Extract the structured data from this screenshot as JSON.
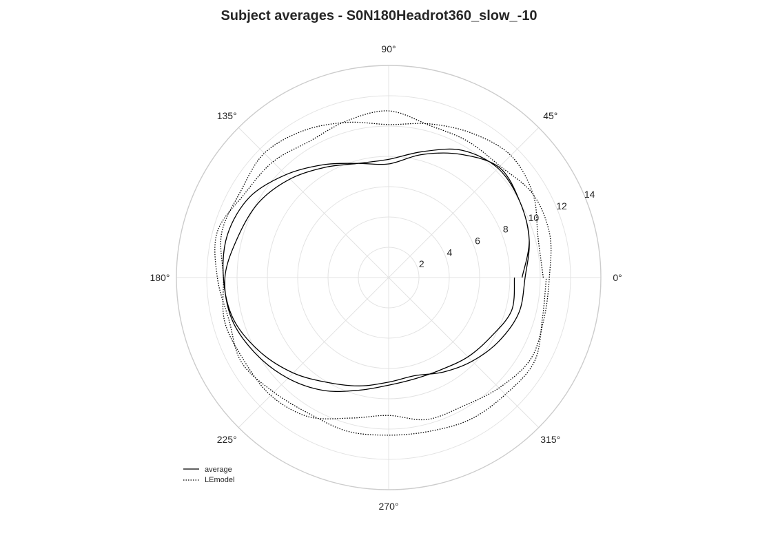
{
  "chart_data": {
    "type": "polar-line",
    "title": "Subject averages - S0N180Headrot360_slow_-10",
    "theta_tick_labels": [
      "0°",
      "45°",
      "90°",
      "135°",
      "180°",
      "225°",
      "270°",
      "315°"
    ],
    "r_tick_labels": [
      "2",
      "4",
      "6",
      "8",
      "10",
      "12",
      "14"
    ],
    "r_ticks": [
      2,
      4,
      6,
      8,
      10,
      12,
      14
    ],
    "rlim": [
      0,
      14
    ],
    "grid": true,
    "legend_position": "lower-left",
    "series": [
      {
        "name": "average",
        "line_style": "solid",
        "color": "#000000",
        "theta_deg": [
          0,
          15,
          30,
          45,
          60,
          75,
          90,
          105,
          120,
          135,
          150,
          165,
          180,
          195,
          210,
          225,
          240,
          255,
          270,
          285,
          300,
          315,
          330,
          345,
          360,
          375,
          390,
          405,
          420,
          435,
          450,
          465,
          480,
          495,
          510,
          525,
          540,
          555,
          570,
          585,
          600,
          615,
          630,
          645,
          660,
          675,
          690,
          705,
          720
        ],
        "r": [
          8.8,
          9.6,
          10.0,
          10.3,
          9.4,
          8.4,
          7.5,
          7.8,
          8.6,
          9.6,
          10.6,
          11.0,
          10.9,
          10.6,
          9.8,
          8.9,
          8.0,
          7.4,
          6.9,
          6.7,
          7.2,
          7.8,
          8.4,
          8.9,
          9.0,
          9.6,
          10.0,
          10.2,
          9.7,
          8.6,
          7.8,
          7.8,
          8.4,
          9.2,
          9.9,
          10.3,
          10.8,
          10.7,
          10.1,
          9.4,
          8.6,
          7.7,
          7.1,
          6.9,
          7.0,
          7.4,
          7.8,
          8.4,
          8.3
        ]
      },
      {
        "name": "LEmodel",
        "line_style": "dotted",
        "color": "#000000",
        "theta_deg": [
          0,
          15,
          30,
          45,
          60,
          75,
          90,
          105,
          120,
          135,
          150,
          165,
          180,
          195,
          210,
          225,
          240,
          255,
          270,
          285,
          300,
          315,
          330,
          345,
          360,
          375,
          390,
          405,
          420,
          435,
          450,
          465,
          480,
          495,
          510,
          525,
          540,
          555,
          570,
          585,
          600,
          615,
          630,
          645,
          660,
          675,
          690,
          705,
          720
        ],
        "r": [
          10.2,
          10.2,
          11.0,
          11.4,
          11.0,
          10.5,
          10.1,
          10.6,
          11.2,
          11.6,
          11.3,
          11.4,
          10.9,
          11.2,
          11.0,
          11.0,
          10.6,
          9.6,
          9.1,
          9.7,
          9.8,
          10.3,
          10.8,
          10.6,
          10.6,
          11.0,
          11.0,
          10.4,
          10.4,
          10.4,
          11.0,
          10.7,
          10.4,
          10.8,
          11.0,
          11.7,
          11.3,
          10.9,
          11.2,
          10.7,
          10.4,
          10.5,
          10.4,
          10.5,
          10.8,
          10.9,
          11.1,
          10.5,
          10.4
        ]
      }
    ]
  }
}
